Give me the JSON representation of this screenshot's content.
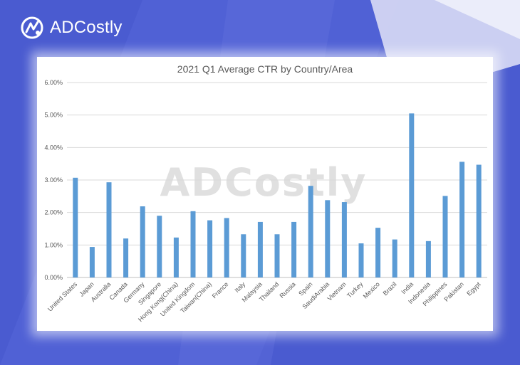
{
  "brand": {
    "name": "ADCostly",
    "logo_icon": "adcostly-logo-icon"
  },
  "colors": {
    "background": "#4a5bd0",
    "bar": "#5b9bd5",
    "grid": "#d9d9d9"
  },
  "watermark": "ADCostly",
  "chart_data": {
    "type": "bar",
    "title": "2021 Q1 Average CTR by Country/Area",
    "xlabel": "",
    "ylabel": "",
    "ylim": [
      0,
      6
    ],
    "ytick_labels": [
      "0.00%",
      "1.00%",
      "2.00%",
      "3.00%",
      "4.00%",
      "5.00%",
      "6.00%"
    ],
    "grid": "horizontal",
    "legend": "none",
    "unit": "%",
    "categories": [
      "United States",
      "Japan",
      "Australia",
      "Canada",
      "Germany",
      "Singapore",
      "Hong Kong(China)",
      "United Kingdom",
      "Taiwan(China)",
      "France",
      "Italy",
      "Malaysia",
      "Thailand",
      "Russia",
      "Spain",
      "SaudiArabia",
      "Vietnam",
      "Turkey",
      "Mexico",
      "Brazil",
      "India",
      "Indonesia",
      "Philippines",
      "Pakistan",
      "Egypt"
    ],
    "values": [
      3.07,
      0.94,
      2.93,
      1.2,
      2.19,
      1.9,
      1.23,
      2.04,
      1.76,
      1.83,
      1.33,
      1.71,
      1.33,
      1.71,
      2.82,
      2.38,
      2.32,
      1.05,
      1.53,
      1.17,
      5.05,
      1.12,
      2.51,
      3.56,
      3.47
    ]
  }
}
